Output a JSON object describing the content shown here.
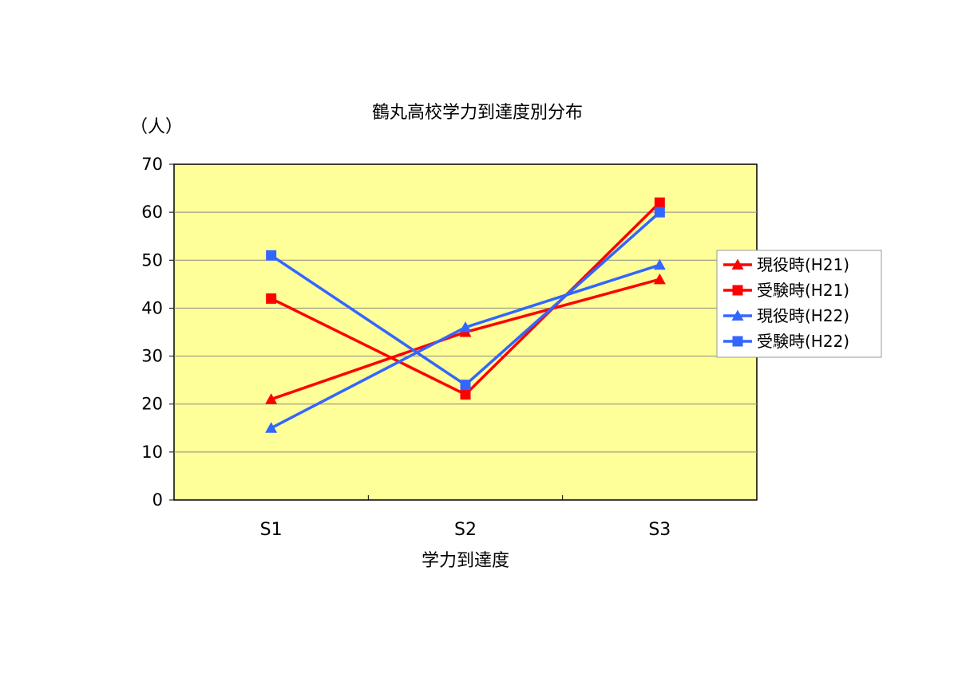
{
  "chart_data": {
    "type": "line",
    "title": "鶴丸高校学力到達度別分布",
    "y_unit": "（人）",
    "xlabel": "学力到達度",
    "ylabel": "",
    "categories": [
      "S1",
      "S2",
      "S3"
    ],
    "ylim": [
      0,
      70
    ],
    "yticks": [
      0,
      10,
      20,
      30,
      40,
      50,
      60,
      70
    ],
    "grid": true,
    "legend_position": "right",
    "plot_background": "#ffff99",
    "series": [
      {
        "name": "現役時(H21)",
        "values": [
          21,
          35,
          46
        ],
        "color": "#ff0000",
        "marker": "triangle"
      },
      {
        "name": "受験時(H21)",
        "values": [
          42,
          22,
          62
        ],
        "color": "#ff0000",
        "marker": "square"
      },
      {
        "name": "現役時(H22)",
        "values": [
          15,
          36,
          49
        ],
        "color": "#3366ff",
        "marker": "triangle"
      },
      {
        "name": "受験時(H22)",
        "values": [
          51,
          24,
          60
        ],
        "color": "#3366ff",
        "marker": "square"
      }
    ]
  }
}
